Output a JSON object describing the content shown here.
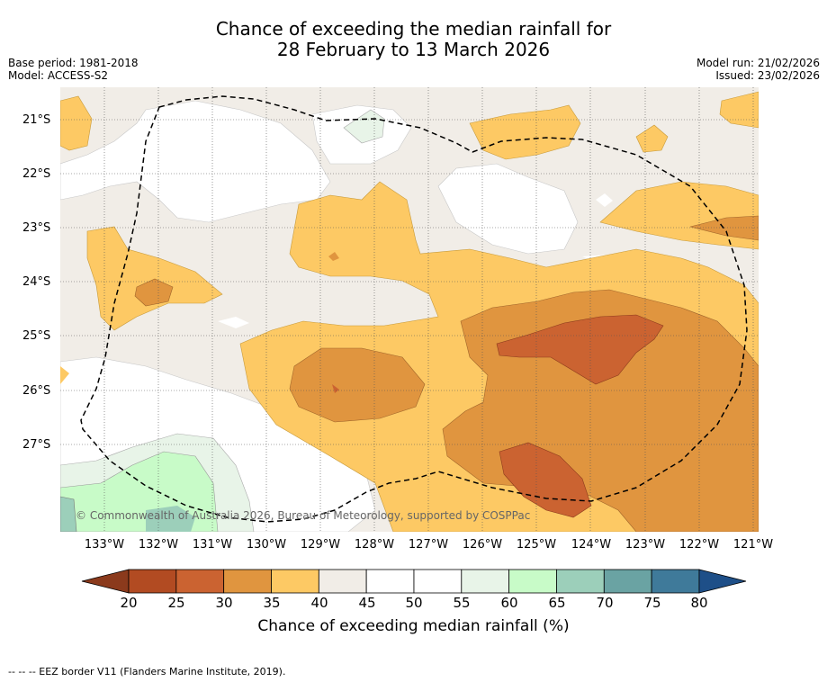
{
  "title_line1": "Chance of exceeding the median rainfall for",
  "title_line2": "28 February to 13 March 2026",
  "meta_left": {
    "base_period": "Base period: 1981-2018",
    "model": "Model: ACCESS-S2"
  },
  "meta_right": {
    "model_run": "Model run: 21/02/2026",
    "issued": "Issued: 23/02/2026"
  },
  "lat_labels": [
    "21°S",
    "22°S",
    "23°S",
    "24°S",
    "25°S",
    "26°S",
    "27°S"
  ],
  "lon_labels": [
    "133°W",
    "132°W",
    "131°W",
    "130°W",
    "129°W",
    "128°W",
    "127°W",
    "126°W",
    "125°W",
    "124°W",
    "123°W",
    "122°W",
    "121°W"
  ],
  "copyright": "© Commonwealth of Australia 2026, Bureau of Meteorology, supported by COSPPac",
  "colorbar": {
    "labels": [
      "20",
      "25",
      "30",
      "35",
      "40",
      "45",
      "50",
      "55",
      "60",
      "65",
      "70",
      "75",
      "80"
    ],
    "colors": [
      "#8b3a1c",
      "#b24b22",
      "#cb6331",
      "#e0953f",
      "#fdc964",
      "#f1ede7",
      "#ffffff",
      "#ffffff",
      "#e8f4e8",
      "#c8fbc8",
      "#9ccfba",
      "#6aa3a3",
      "#3f7a9a",
      "#1e4f88"
    ],
    "title": "Chance of exceeding median rainfall (%)"
  },
  "eez_note": "--  --  -- EEZ border V11 (Flanders Marine Institute, 2019)."
}
